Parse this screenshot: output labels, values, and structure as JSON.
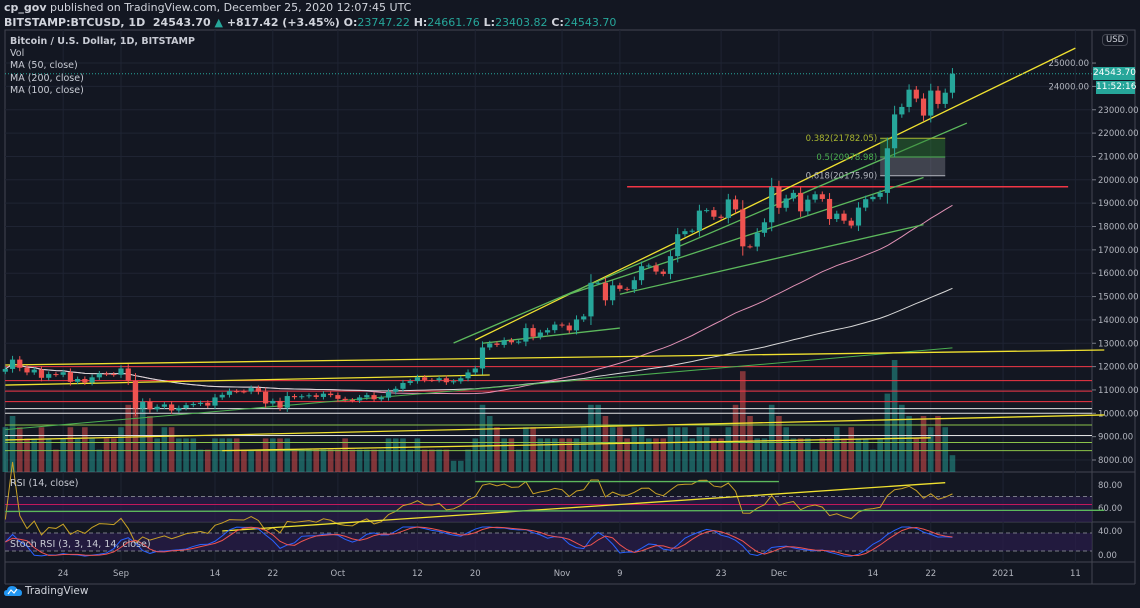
{
  "header": {
    "publisher": "cp_gov",
    "published_text": "published on TradingView.com, December 25, 2020 12:07:45 UTC",
    "symbol": "BITSTAMP:BTCUSD, 1D",
    "last": "24543.70",
    "change": "+817.42 (+3.45%)",
    "o_label": "O:",
    "o": "23747.22",
    "h_label": "H:",
    "h": "24661.76",
    "l_label": "L:",
    "l": "23403.82",
    "c_label": "C:",
    "c": "24543.70"
  },
  "legend": [
    "Bitcoin / U.S. Dollar, 1D, BITSTAMP",
    "Vol",
    "MA (50, close)",
    "MA (200, close)",
    "MA (100, close)"
  ],
  "rsi_label": "RSI (14, close)",
  "stoch_label": "Stoch RSI (3, 3, 14, 14, close)",
  "price_tag": "24543.70",
  "countdown": "11:52:16",
  "currency_button": "USD",
  "brand": "TradingView",
  "colors": {
    "background": "#131722",
    "up": "#26a69a",
    "down": "#ef5350",
    "ma50": "#e091b5",
    "ma100": "#d8d8d8",
    "ma200": "#4caf50",
    "rsi": "#c9a227",
    "stoch_k": "#2962ff",
    "stoch_d": "#ef5350"
  },
  "chart_data": {
    "type": "candlestick",
    "title": "Bitcoin / U.S. Dollar, 1D, BITSTAMP",
    "ylim": [
      7500,
      26000
    ],
    "y_ticks": [
      "25000.00",
      "24000.00",
      "23000.00",
      "22000.00",
      "21000.00",
      "20000.00",
      "19000.00",
      "18000.00",
      "17000.00",
      "16000.00",
      "15000.00",
      "14000.00",
      "13000.00",
      "12000.00",
      "11000.00",
      "10000.00",
      "9000.00",
      "8000.00"
    ],
    "y_tick_values": [
      25000,
      24000,
      23000,
      22000,
      21000,
      20000,
      19000,
      18000,
      17000,
      16000,
      15000,
      14000,
      13000,
      12000,
      11000,
      10000,
      9000,
      8000
    ],
    "rsi_ticks": [
      "80.00",
      "60.00",
      "40.00",
      "0.00"
    ],
    "x_ticks": [
      {
        "label": "24",
        "date": "2020-08-24"
      },
      {
        "label": "Sep",
        "date": "2020-09-01"
      },
      {
        "label": "14",
        "date": "2020-09-14"
      },
      {
        "label": "22",
        "date": "2020-09-22"
      },
      {
        "label": "Oct",
        "date": "2020-10-01"
      },
      {
        "label": "12",
        "date": "2020-10-12"
      },
      {
        "label": "20",
        "date": "2020-10-20"
      },
      {
        "label": "Nov",
        "date": "2020-11-01"
      },
      {
        "label": "9",
        "date": "2020-11-09"
      },
      {
        "label": "23",
        "date": "2020-11-23"
      },
      {
        "label": "Dec",
        "date": "2020-12-01"
      },
      {
        "label": "14",
        "date": "2020-12-14"
      },
      {
        "label": "22",
        "date": "2020-12-22"
      },
      {
        "label": "2021",
        "date": "2021-01-01"
      },
      {
        "label": "11",
        "date": "2021-01-11"
      }
    ],
    "months": [
      {
        "month": "2020-08",
        "first_day": 16,
        "close": [
          11900,
          12300,
          11950,
          11750,
          11870,
          11520,
          11680,
          11650,
          11760,
          11350,
          11470,
          11320,
          11540,
          11700,
          11680,
          11650
        ],
        "volume": [
          4,
          5,
          4,
          3,
          3,
          4,
          3,
          2,
          3,
          4,
          3,
          4,
          3,
          2,
          3,
          3
        ]
      },
      {
        "month": "2020-09",
        "first_day": 1,
        "close": [
          11920,
          11400,
          10200,
          10500,
          10170,
          10280,
          10380,
          10120,
          10230,
          10350,
          10400,
          10450,
          10330,
          10680,
          10790,
          10950,
          10940,
          10930,
          11080,
          10920,
          10420,
          10530,
          10240,
          10740,
          10690,
          10730,
          10770,
          10700,
          10840,
          10780
        ],
        "volume": [
          4,
          6,
          8,
          6,
          5,
          3,
          4,
          4,
          3,
          3,
          3,
          2,
          2,
          3,
          3,
          3,
          3,
          2,
          2,
          2,
          3,
          3,
          3,
          3,
          2,
          2,
          2,
          2,
          2,
          2
        ]
      },
      {
        "month": "2020-10",
        "first_day": 1,
        "close": [
          10620,
          10570,
          10550,
          10680,
          10780,
          10600,
          10670,
          10920,
          11050,
          11300,
          11380,
          11540,
          11430,
          11420,
          11500,
          11330,
          11370,
          11500,
          11750,
          11920,
          12820,
          12990,
          12930,
          13130,
          13040,
          13070,
          13650,
          13280,
          13460,
          13560,
          13800
        ],
        "volume": [
          2,
          3,
          2,
          2,
          2,
          2,
          2,
          3,
          3,
          3,
          2,
          3,
          2,
          2,
          2,
          2,
          1,
          1,
          2,
          3,
          6,
          5,
          4,
          3,
          3,
          2,
          4,
          4,
          3,
          3,
          3
        ]
      },
      {
        "month": "2020-11",
        "first_day": 1,
        "close": [
          13760,
          13550,
          14020,
          14150,
          15590,
          15590,
          14840,
          15480,
          15330,
          15310,
          15700,
          16300,
          16330,
          16070,
          15970,
          16730,
          17670,
          17800,
          17820,
          18680,
          18700,
          18420,
          18370,
          19160,
          18730,
          17150,
          17140,
          17730,
          18180,
          19700
        ],
        "volume": [
          3,
          3,
          3,
          4,
          6,
          6,
          5,
          4,
          4,
          3,
          4,
          4,
          3,
          3,
          3,
          4,
          4,
          4,
          3,
          4,
          4,
          3,
          3,
          4,
          6,
          9,
          5,
          3,
          3,
          6
        ]
      },
      {
        "month": "2020-12",
        "first_day": 1,
        "close": [
          18800,
          19200,
          19440,
          18650,
          19150,
          19380,
          19180,
          18320,
          18550,
          18250,
          18040,
          18810,
          19170,
          19270,
          19440,
          21350,
          22800,
          23120,
          23860,
          23480,
          22750,
          23820,
          23250,
          23730,
          24543.7
        ],
        "volume": [
          5,
          4,
          3,
          3,
          3,
          2,
          3,
          3,
          4,
          3,
          4,
          3,
          3,
          2,
          3,
          7,
          10,
          6,
          5,
          3,
          5,
          4,
          5,
          4,
          1.5
        ]
      }
    ],
    "ma200_line": [
      {
        "date": "2020-08-16",
        "value": 9300
      },
      {
        "date": "2020-12-25",
        "value": 12800
      }
    ],
    "drawings": {
      "trendlines": [
        {
          "color": "#f0e130",
          "p1": {
            "date": "2020-10-20",
            "value": 13140
          },
          "p2": {
            "date": "2021-01-11",
            "value": 25640
          }
        },
        {
          "color": "#5cb85c",
          "p1": {
            "date": "2020-10-17",
            "value": 13010
          },
          "p2": {
            "date": "2020-12-27",
            "value": 22430
          }
        },
        {
          "color": "#5cb85c",
          "p1": {
            "date": "2020-11-01",
            "value": 15000
          },
          "p2": {
            "date": "2020-12-21",
            "value": 20100
          }
        },
        {
          "color": "#5cb85c",
          "p1": {
            "date": "2020-11-09",
            "value": 15100
          },
          "p2": {
            "date": "2020-12-21",
            "value": 18080
          }
        },
        {
          "color": "#5cb85c",
          "p1": {
            "date": "2020-10-21",
            "value": 13000
          },
          "p2": {
            "date": "2020-11-09",
            "value": 13650
          }
        },
        {
          "color": "#f0e130",
          "p1": {
            "date": "2020-08-16",
            "value": 12070
          },
          "p2": {
            "date": "2021-01-15",
            "value": 12710
          }
        },
        {
          "color": "#f0e130",
          "p1": {
            "date": "2020-08-16",
            "value": 8860
          },
          "p2": {
            "date": "2021-01-15",
            "value": 9930
          }
        },
        {
          "color": "#f0e130",
          "p1": {
            "date": "2020-08-16",
            "value": 11210
          },
          "p2": {
            "date": "2020-10-22",
            "value": 11640
          }
        },
        {
          "color": "#f0e130",
          "p1": {
            "date": "2020-09-15",
            "value": 8400
          },
          "p2": {
            "date": "2020-12-22",
            "value": 8950
          }
        }
      ],
      "hlines": [
        {
          "value": 19700,
          "color": "#f23645",
          "from": "2020-11-10",
          "to": "2021-01-10"
        },
        {
          "value": 12000,
          "color": "#f23645"
        },
        {
          "value": 11400,
          "color": "#f23645"
        },
        {
          "value": 10950,
          "color": "#f23645"
        },
        {
          "value": 10500,
          "color": "#f23645"
        },
        {
          "value": 10200,
          "color": "#e0e0e0"
        },
        {
          "value": 10000,
          "color": "#e0e0e0"
        },
        {
          "value": 9500,
          "color": "#8bc34a"
        },
        {
          "value": 9050,
          "color": "#e0e0e0"
        },
        {
          "value": 8750,
          "color": "#8bc34a"
        },
        {
          "value": 8400,
          "color": "#8bc34a"
        }
      ],
      "fib": {
        "from": "2020-12-15",
        "to": "2020-12-24",
        "levels": [
          {
            "ratio": "0.382",
            "value": 21782.05,
            "label": "0.382(21782.05)",
            "color": "#a8b530"
          },
          {
            "ratio": "0.5",
            "value": 20978.98,
            "label": "0.5(20978.98)",
            "color": "#4caf50"
          },
          {
            "ratio": "0.618",
            "value": 20175.9,
            "label": "0.618(20175.90)",
            "color": "#b2b5be"
          }
        ]
      },
      "rsi_trendlines": [
        {
          "color": "#f0e130",
          "p1": {
            "date": "2020-09-15",
            "value": 40
          },
          "p2": {
            "date": "2020-12-24",
            "value": 82
          }
        },
        {
          "color": "#5cb85c",
          "p1": {
            "date": "2020-08-16",
            "value": 57
          },
          "p2": {
            "date": "2021-01-15",
            "value": 58
          }
        },
        {
          "color": "#5cb85c",
          "p1": {
            "date": "2020-10-20",
            "value": 83
          },
          "p2": {
            "date": "2020-12-01",
            "value": 83
          }
        }
      ]
    }
  }
}
